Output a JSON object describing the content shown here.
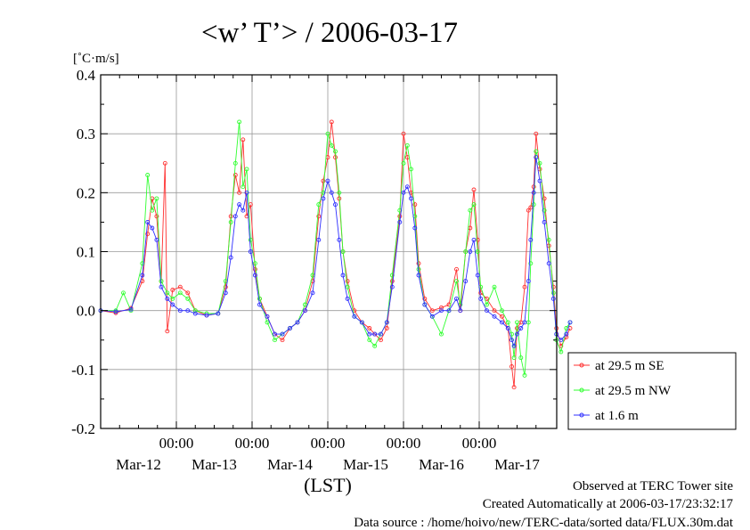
{
  "chart_data": {
    "type": "line",
    "title": "<w’ T’> / 2006-03-17",
    "ylabel": "[˚C·m/s]",
    "xlabel": "(LST)",
    "ylim": [
      -0.2,
      0.4
    ],
    "xlim": [
      0,
      6
    ],
    "y_ticks": [
      "0.4",
      "0.3",
      "0.2",
      "0.1",
      "0.0",
      "-0.1",
      "-0.2"
    ],
    "x_time_ticks": [
      "00:00",
      "00:00",
      "00:00",
      "00:00",
      "00:00"
    ],
    "x_date_ticks": [
      "Mar-12",
      "Mar-13",
      "Mar-14",
      "Mar-15",
      "Mar-16",
      "Mar-17"
    ],
    "grid": true,
    "legend_position": "right",
    "series": [
      {
        "name": "at 29.5 m SE",
        "color": "#ff3030",
        "points": [
          [
            0,
            0.0
          ],
          [
            0.2,
            -0.004
          ],
          [
            0.4,
            0.004
          ],
          [
            0.55,
            0.05
          ],
          [
            0.62,
            0.13
          ],
          [
            0.68,
            0.19
          ],
          [
            0.74,
            0.16
          ],
          [
            0.8,
            0.05
          ],
          [
            0.85,
            0.25
          ],
          [
            0.88,
            -0.035
          ],
          [
            0.95,
            0.035
          ],
          [
            1.05,
            0.04
          ],
          [
            1.15,
            0.03
          ],
          [
            1.25,
            0.0
          ],
          [
            1.4,
            -0.008
          ],
          [
            1.55,
            -0.005
          ],
          [
            1.65,
            0.04
          ],
          [
            1.72,
            0.16
          ],
          [
            1.78,
            0.23
          ],
          [
            1.83,
            0.2
          ],
          [
            1.88,
            0.29
          ],
          [
            1.93,
            0.16
          ],
          [
            1.98,
            0.18
          ],
          [
            2.04,
            0.07
          ],
          [
            2.1,
            0.02
          ],
          [
            2.2,
            -0.01
          ],
          [
            2.3,
            -0.04
          ],
          [
            2.4,
            -0.05
          ],
          [
            2.5,
            -0.03
          ],
          [
            2.6,
            -0.02
          ],
          [
            2.7,
            0.0
          ],
          [
            2.8,
            0.05
          ],
          [
            2.88,
            0.16
          ],
          [
            2.94,
            0.22
          ],
          [
            3.0,
            0.26
          ],
          [
            3.05,
            0.32
          ],
          [
            3.1,
            0.26
          ],
          [
            3.15,
            0.19
          ],
          [
            3.2,
            0.1
          ],
          [
            3.26,
            0.05
          ],
          [
            3.35,
            0.0
          ],
          [
            3.45,
            -0.02
          ],
          [
            3.55,
            -0.03
          ],
          [
            3.62,
            -0.04
          ],
          [
            3.7,
            -0.05
          ],
          [
            3.78,
            -0.03
          ],
          [
            3.85,
            0.05
          ],
          [
            3.95,
            0.16
          ],
          [
            4.0,
            0.3
          ],
          [
            4.05,
            0.26
          ],
          [
            4.1,
            0.2
          ],
          [
            4.15,
            0.18
          ],
          [
            4.2,
            0.08
          ],
          [
            4.28,
            0.02
          ],
          [
            4.38,
            0.0
          ],
          [
            4.5,
            0.005
          ],
          [
            4.6,
            0.01
          ],
          [
            4.7,
            0.07
          ],
          [
            4.75,
            0.0
          ],
          [
            4.82,
            0.1
          ],
          [
            4.88,
            0.14
          ],
          [
            4.93,
            0.205
          ],
          [
            4.98,
            0.12
          ],
          [
            5.02,
            0.03
          ],
          [
            5.1,
            0.02
          ],
          [
            5.2,
            0.0
          ],
          [
            5.3,
            -0.01
          ],
          [
            5.38,
            -0.03
          ],
          [
            5.43,
            -0.095
          ],
          [
            5.46,
            -0.13
          ],
          [
            5.5,
            -0.03
          ],
          [
            5.55,
            -0.02
          ],
          [
            5.6,
            0.04
          ],
          [
            5.65,
            0.17
          ],
          [
            5.68,
            0.175
          ],
          [
            5.72,
            0.21
          ],
          [
            5.75,
            0.3
          ],
          [
            5.8,
            0.24
          ],
          [
            5.86,
            0.19
          ],
          [
            5.92,
            0.11
          ],
          [
            5.98,
            0.04
          ],
          [
            6.02,
            -0.03
          ],
          [
            6.08,
            -0.06
          ],
          [
            6.15,
            -0.045
          ],
          [
            6.2,
            -0.03
          ]
        ]
      },
      {
        "name": "at 29.5 m NW",
        "color": "#30ff30",
        "points": [
          [
            0,
            0.0
          ],
          [
            0.2,
            0.0
          ],
          [
            0.3,
            0.03
          ],
          [
            0.4,
            0.0
          ],
          [
            0.55,
            0.08
          ],
          [
            0.62,
            0.23
          ],
          [
            0.68,
            0.17
          ],
          [
            0.74,
            0.19
          ],
          [
            0.8,
            0.05
          ],
          [
            0.88,
            0.03
          ],
          [
            0.95,
            0.02
          ],
          [
            1.05,
            0.03
          ],
          [
            1.15,
            0.02
          ],
          [
            1.25,
            0.0
          ],
          [
            1.4,
            -0.005
          ],
          [
            1.55,
            -0.005
          ],
          [
            1.65,
            0.05
          ],
          [
            1.72,
            0.15
          ],
          [
            1.78,
            0.25
          ],
          [
            1.83,
            0.32
          ],
          [
            1.88,
            0.21
          ],
          [
            1.93,
            0.24
          ],
          [
            1.98,
            0.12
          ],
          [
            2.04,
            0.08
          ],
          [
            2.1,
            0.02
          ],
          [
            2.2,
            -0.02
          ],
          [
            2.3,
            -0.05
          ],
          [
            2.4,
            -0.04
          ],
          [
            2.5,
            -0.03
          ],
          [
            2.6,
            -0.02
          ],
          [
            2.7,
            0.01
          ],
          [
            2.8,
            0.06
          ],
          [
            2.88,
            0.18
          ],
          [
            2.94,
            0.2
          ],
          [
            3.0,
            0.3
          ],
          [
            3.05,
            0.28
          ],
          [
            3.1,
            0.27
          ],
          [
            3.15,
            0.2
          ],
          [
            3.2,
            0.1
          ],
          [
            3.26,
            0.04
          ],
          [
            3.35,
            -0.01
          ],
          [
            3.45,
            -0.02
          ],
          [
            3.55,
            -0.05
          ],
          [
            3.62,
            -0.06
          ],
          [
            3.7,
            -0.04
          ],
          [
            3.78,
            -0.02
          ],
          [
            3.85,
            0.06
          ],
          [
            3.95,
            0.17
          ],
          [
            4.0,
            0.25
          ],
          [
            4.05,
            0.28
          ],
          [
            4.1,
            0.24
          ],
          [
            4.15,
            0.16
          ],
          [
            4.2,
            0.07
          ],
          [
            4.28,
            0.01
          ],
          [
            4.38,
            -0.01
          ],
          [
            4.5,
            -0.04
          ],
          [
            4.6,
            0.0
          ],
          [
            4.7,
            0.05
          ],
          [
            4.75,
            0.01
          ],
          [
            4.82,
            0.1
          ],
          [
            4.88,
            0.17
          ],
          [
            4.93,
            0.18
          ],
          [
            4.98,
            0.1
          ],
          [
            5.02,
            0.04
          ],
          [
            5.1,
            0.01
          ],
          [
            5.2,
            0.04
          ],
          [
            5.3,
            0.0
          ],
          [
            5.38,
            -0.02
          ],
          [
            5.43,
            -0.04
          ],
          [
            5.46,
            -0.08
          ],
          [
            5.5,
            -0.02
          ],
          [
            5.55,
            -0.08
          ],
          [
            5.6,
            -0.11
          ],
          [
            5.65,
            -0.02
          ],
          [
            5.68,
            0.08
          ],
          [
            5.72,
            0.18
          ],
          [
            5.75,
            0.27
          ],
          [
            5.8,
            0.25
          ],
          [
            5.86,
            0.17
          ],
          [
            5.92,
            0.12
          ],
          [
            5.98,
            0.03
          ],
          [
            6.02,
            -0.05
          ],
          [
            6.08,
            -0.07
          ],
          [
            6.15,
            -0.03
          ],
          [
            6.2,
            -0.02
          ]
        ]
      },
      {
        "name": "at 1.6 m",
        "color": "#3030ff",
        "points": [
          [
            0,
            0.0
          ],
          [
            0.2,
            -0.002
          ],
          [
            0.4,
            0.002
          ],
          [
            0.55,
            0.06
          ],
          [
            0.62,
            0.15
          ],
          [
            0.68,
            0.14
          ],
          [
            0.74,
            0.12
          ],
          [
            0.8,
            0.04
          ],
          [
            0.88,
            0.02
          ],
          [
            0.95,
            0.01
          ],
          [
            1.05,
            0.0
          ],
          [
            1.15,
            0.0
          ],
          [
            1.25,
            -0.005
          ],
          [
            1.4,
            -0.008
          ],
          [
            1.55,
            -0.005
          ],
          [
            1.65,
            0.03
          ],
          [
            1.72,
            0.09
          ],
          [
            1.78,
            0.16
          ],
          [
            1.83,
            0.18
          ],
          [
            1.88,
            0.17
          ],
          [
            1.93,
            0.2
          ],
          [
            1.98,
            0.1
          ],
          [
            2.04,
            0.06
          ],
          [
            2.1,
            0.01
          ],
          [
            2.2,
            -0.01
          ],
          [
            2.3,
            -0.04
          ],
          [
            2.4,
            -0.04
          ],
          [
            2.5,
            -0.03
          ],
          [
            2.6,
            -0.02
          ],
          [
            2.7,
            0.0
          ],
          [
            2.8,
            0.03
          ],
          [
            2.88,
            0.12
          ],
          [
            2.94,
            0.19
          ],
          [
            3.0,
            0.22
          ],
          [
            3.05,
            0.2
          ],
          [
            3.1,
            0.18
          ],
          [
            3.15,
            0.12
          ],
          [
            3.2,
            0.06
          ],
          [
            3.26,
            0.02
          ],
          [
            3.35,
            -0.01
          ],
          [
            3.45,
            -0.02
          ],
          [
            3.55,
            -0.04
          ],
          [
            3.62,
            -0.04
          ],
          [
            3.7,
            -0.04
          ],
          [
            3.78,
            -0.02
          ],
          [
            3.85,
            0.04
          ],
          [
            3.95,
            0.15
          ],
          [
            4.0,
            0.2
          ],
          [
            4.05,
            0.21
          ],
          [
            4.1,
            0.19
          ],
          [
            4.15,
            0.14
          ],
          [
            4.2,
            0.06
          ],
          [
            4.28,
            0.01
          ],
          [
            4.38,
            -0.01
          ],
          [
            4.5,
            0.0
          ],
          [
            4.6,
            0.0
          ],
          [
            4.7,
            0.02
          ],
          [
            4.75,
            0.0
          ],
          [
            4.82,
            0.05
          ],
          [
            4.88,
            0.1
          ],
          [
            4.93,
            0.12
          ],
          [
            4.98,
            0.06
          ],
          [
            5.02,
            0.02
          ],
          [
            5.1,
            0.0
          ],
          [
            5.2,
            -0.01
          ],
          [
            5.3,
            -0.02
          ],
          [
            5.38,
            -0.03
          ],
          [
            5.43,
            -0.05
          ],
          [
            5.46,
            -0.06
          ],
          [
            5.5,
            -0.04
          ],
          [
            5.55,
            -0.03
          ],
          [
            5.6,
            -0.02
          ],
          [
            5.65,
            0.05
          ],
          [
            5.68,
            0.12
          ],
          [
            5.72,
            0.2
          ],
          [
            5.75,
            0.26
          ],
          [
            5.8,
            0.22
          ],
          [
            5.86,
            0.15
          ],
          [
            5.92,
            0.08
          ],
          [
            5.98,
            0.02
          ],
          [
            6.02,
            -0.04
          ],
          [
            6.08,
            -0.05
          ],
          [
            6.15,
            -0.04
          ],
          [
            6.2,
            -0.02
          ]
        ]
      }
    ]
  },
  "footer": {
    "line1": "Observed at TERC Tower site",
    "line2": "Created Automatically at 2006-03-17/23:32:17",
    "line3": "Data source : /home/hoivo/new/TERC-data/sorted  data/FLUX.30m.dat"
  }
}
